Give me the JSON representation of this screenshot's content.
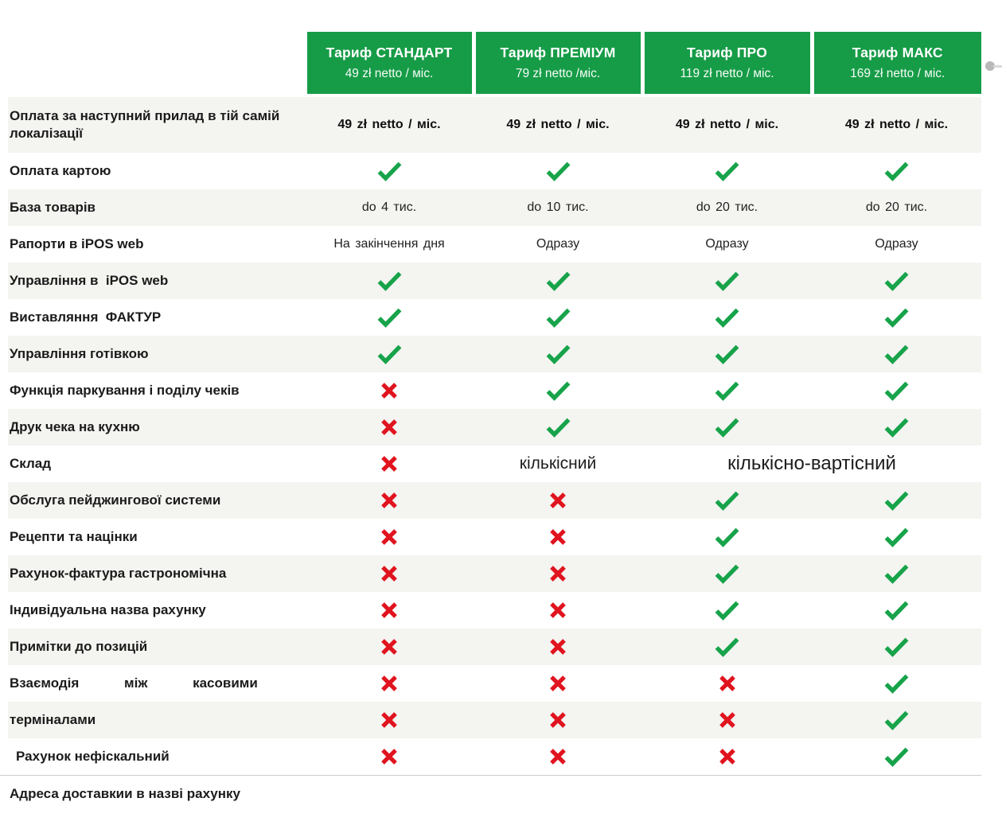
{
  "header": {
    "plans": [
      {
        "name": "Тариф СТАНДАРТ",
        "price": "49 zł netto / міс."
      },
      {
        "name": "Тариф ПРЕМІУМ",
        "price": "79 zł netto /міс."
      },
      {
        "name": "Тариф ПРО",
        "price": "119 zł netto / міс."
      },
      {
        "name": "Тариф МАКС",
        "price": "169 zł netto / міс."
      }
    ]
  },
  "rows": [
    {
      "label": "Оплата за наступний прилад в тій самій локалізації",
      "shaded": true,
      "tall": true,
      "cells": [
        {
          "type": "text_bold",
          "value": "49 zł netto / міс."
        },
        {
          "type": "text_bold",
          "value": "49 zł netto / міс."
        },
        {
          "type": "text_bold",
          "value": "49 zł netto / міс."
        },
        {
          "type": "text_bold",
          "value": "49 zł netto / міс."
        }
      ]
    },
    {
      "label": "Оплата картою",
      "shaded": false,
      "cells": [
        {
          "type": "check"
        },
        {
          "type": "check"
        },
        {
          "type": "check"
        },
        {
          "type": "check"
        }
      ]
    },
    {
      "label": "База товарів",
      "shaded": true,
      "cells": [
        {
          "type": "text",
          "value": "do 4 тис."
        },
        {
          "type": "text",
          "value": "do 10 тис."
        },
        {
          "type": "text",
          "value": "do 20 тис."
        },
        {
          "type": "text",
          "value": "do 20 тис."
        }
      ]
    },
    {
      "label": "Рапорти в iPOS web",
      "shaded": false,
      "cells": [
        {
          "type": "text",
          "value": "На закінчення дня"
        },
        {
          "type": "text",
          "value": "Одразу"
        },
        {
          "type": "text",
          "value": "Одразу"
        },
        {
          "type": "text",
          "value": "Одразу"
        }
      ]
    },
    {
      "label": "Управління в  iPOS web",
      "shaded": true,
      "cells": [
        {
          "type": "check"
        },
        {
          "type": "check"
        },
        {
          "type": "check"
        },
        {
          "type": "check"
        }
      ]
    },
    {
      "label": "Виставляння  ФАКТУР",
      "shaded": false,
      "cells": [
        {
          "type": "check"
        },
        {
          "type": "check"
        },
        {
          "type": "check"
        },
        {
          "type": "check"
        }
      ]
    },
    {
      "label": "Управління готівкою",
      "shaded": true,
      "cells": [
        {
          "type": "check"
        },
        {
          "type": "check"
        },
        {
          "type": "check"
        },
        {
          "type": "check"
        }
      ]
    },
    {
      "label": "Функція паркування і поділу чеків",
      "shaded": false,
      "cells": [
        {
          "type": "cross"
        },
        {
          "type": "check"
        },
        {
          "type": "check"
        },
        {
          "type": "check"
        }
      ]
    },
    {
      "label": "Друк чека на кухню",
      "shaded": true,
      "cells": [
        {
          "type": "cross"
        },
        {
          "type": "check"
        },
        {
          "type": "check"
        },
        {
          "type": "check"
        }
      ]
    },
    {
      "label": "Склад",
      "shaded": false,
      "cells": [
        {
          "type": "cross"
        },
        {
          "type": "text_lg",
          "value": "кількісний"
        },
        {
          "type": "text_xl",
          "value": "кількісно-вартісний",
          "span": 2
        }
      ]
    },
    {
      "label": "Обслуга пейджингової системи",
      "shaded": true,
      "cells": [
        {
          "type": "cross"
        },
        {
          "type": "cross"
        },
        {
          "type": "check"
        },
        {
          "type": "check"
        }
      ]
    },
    {
      "label": "Рецепти та націнки",
      "shaded": false,
      "cells": [
        {
          "type": "cross"
        },
        {
          "type": "cross"
        },
        {
          "type": "check"
        },
        {
          "type": "check"
        }
      ]
    },
    {
      "label": "Рахунок-фактура гастрономічна",
      "shaded": true,
      "cells": [
        {
          "type": "cross"
        },
        {
          "type": "cross"
        },
        {
          "type": "check"
        },
        {
          "type": "check"
        }
      ]
    },
    {
      "label": "Індивідуальна назва рахунку",
      "shaded": false,
      "cells": [
        {
          "type": "cross"
        },
        {
          "type": "cross"
        },
        {
          "type": "check"
        },
        {
          "type": "check"
        }
      ]
    },
    {
      "label": "Примітки до позицій",
      "shaded": true,
      "cells": [
        {
          "type": "cross"
        },
        {
          "type": "cross"
        },
        {
          "type": "check"
        },
        {
          "type": "check"
        }
      ]
    },
    {
      "label": "Взаємодія між касовими",
      "shaded": false,
      "justify": true,
      "cells": [
        {
          "type": "cross"
        },
        {
          "type": "cross"
        },
        {
          "type": "cross"
        },
        {
          "type": "check"
        }
      ]
    },
    {
      "label": "терміналами",
      "shaded": true,
      "cells": [
        {
          "type": "cross"
        },
        {
          "type": "cross"
        },
        {
          "type": "cross"
        },
        {
          "type": "check"
        }
      ]
    },
    {
      "label": "Рахунок нефіскальний",
      "shaded": false,
      "indent": true,
      "cells": [
        {
          "type": "cross"
        },
        {
          "type": "cross"
        },
        {
          "type": "cross"
        },
        {
          "type": "check"
        }
      ]
    },
    {
      "label": "Адреса доставкии в назві рахунку",
      "shaded": false,
      "divider": true,
      "cells": []
    }
  ],
  "icons": {
    "check": "check-icon",
    "cross": "cross-icon"
  },
  "colors": {
    "header_green": "#169C47",
    "row_shade": "#F4F4F1",
    "check_green": "#17A34A",
    "cross_red": "#E0141F",
    "divider_gray": "#CCCCCC",
    "dot_gray": "#B9B9B9",
    "dot_tail_gray": "#D8D8D8"
  }
}
